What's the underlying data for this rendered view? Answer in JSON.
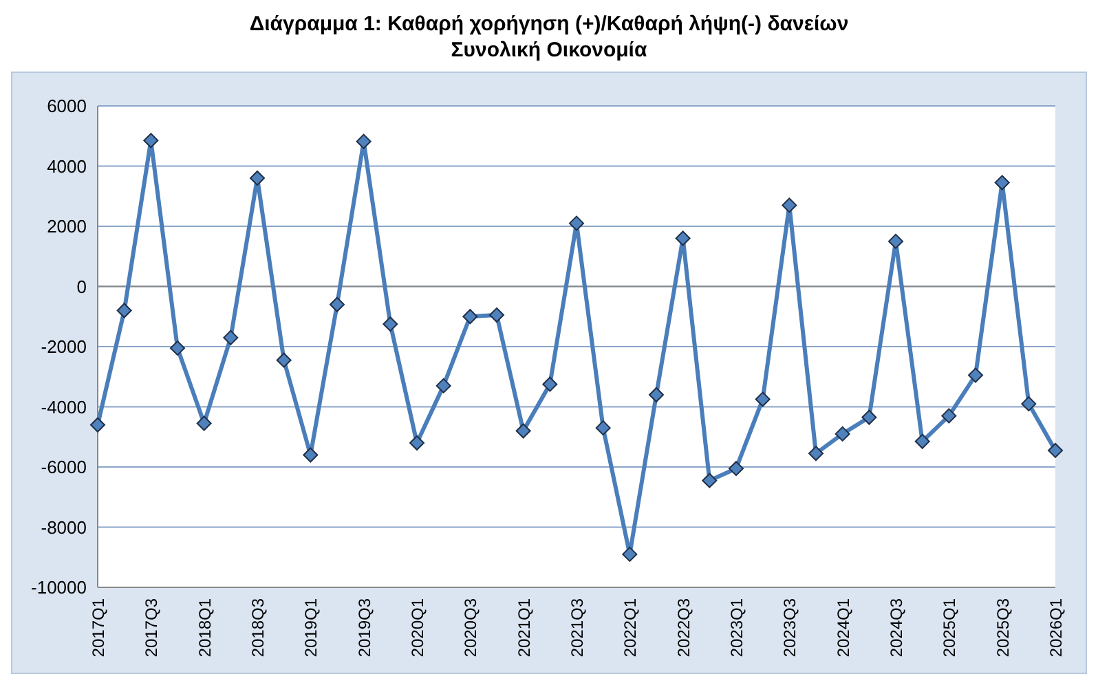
{
  "chart_data": {
    "type": "line",
    "title": "Διάγραμμα 1: Καθαρή χορήγηση (+)/Καθαρή λήψη(-) δανείων",
    "subtitle": "Συνολική Οικονομία",
    "categories": [
      "2017Q1",
      null,
      "2017Q3",
      null,
      "2018Q1",
      null,
      "2018Q3",
      null,
      "2019Q1",
      null,
      "2019Q3",
      null,
      "2020Q1",
      null,
      "2020Q3",
      null,
      "2021Q1",
      null,
      "2021Q3",
      null,
      "2022Q1",
      null,
      "2022Q3",
      null,
      "2023Q1",
      null,
      "2023Q3",
      null,
      "2024Q1",
      null,
      "2024Q3",
      null,
      "2025Q1",
      null,
      "2025Q3",
      null,
      "2026Q1"
    ],
    "series": [
      {
        "color": "#4a7ebb",
        "values": [
          -4600,
          -800,
          4850,
          -2050,
          -4550,
          -1700,
          3600,
          -2450,
          -5600,
          -600,
          4820,
          -1250,
          -5200,
          -3300,
          -1000,
          -950,
          -4800,
          -3250,
          2100,
          -4700,
          -8900,
          -3600,
          1600,
          -6450,
          -6050,
          -3750,
          2700,
          -5550,
          -4900,
          -4350,
          1500,
          -5150,
          -4300,
          -2950,
          3450,
          -3900,
          -5450
        ]
      }
    ],
    "ylim": [
      -10000,
      6000
    ],
    "yticks": [
      -10000,
      -8000,
      -6000,
      -4000,
      -2000,
      0,
      2000,
      4000,
      6000
    ],
    "grid": "y",
    "marker": "diamond",
    "line_style": "solid"
  }
}
